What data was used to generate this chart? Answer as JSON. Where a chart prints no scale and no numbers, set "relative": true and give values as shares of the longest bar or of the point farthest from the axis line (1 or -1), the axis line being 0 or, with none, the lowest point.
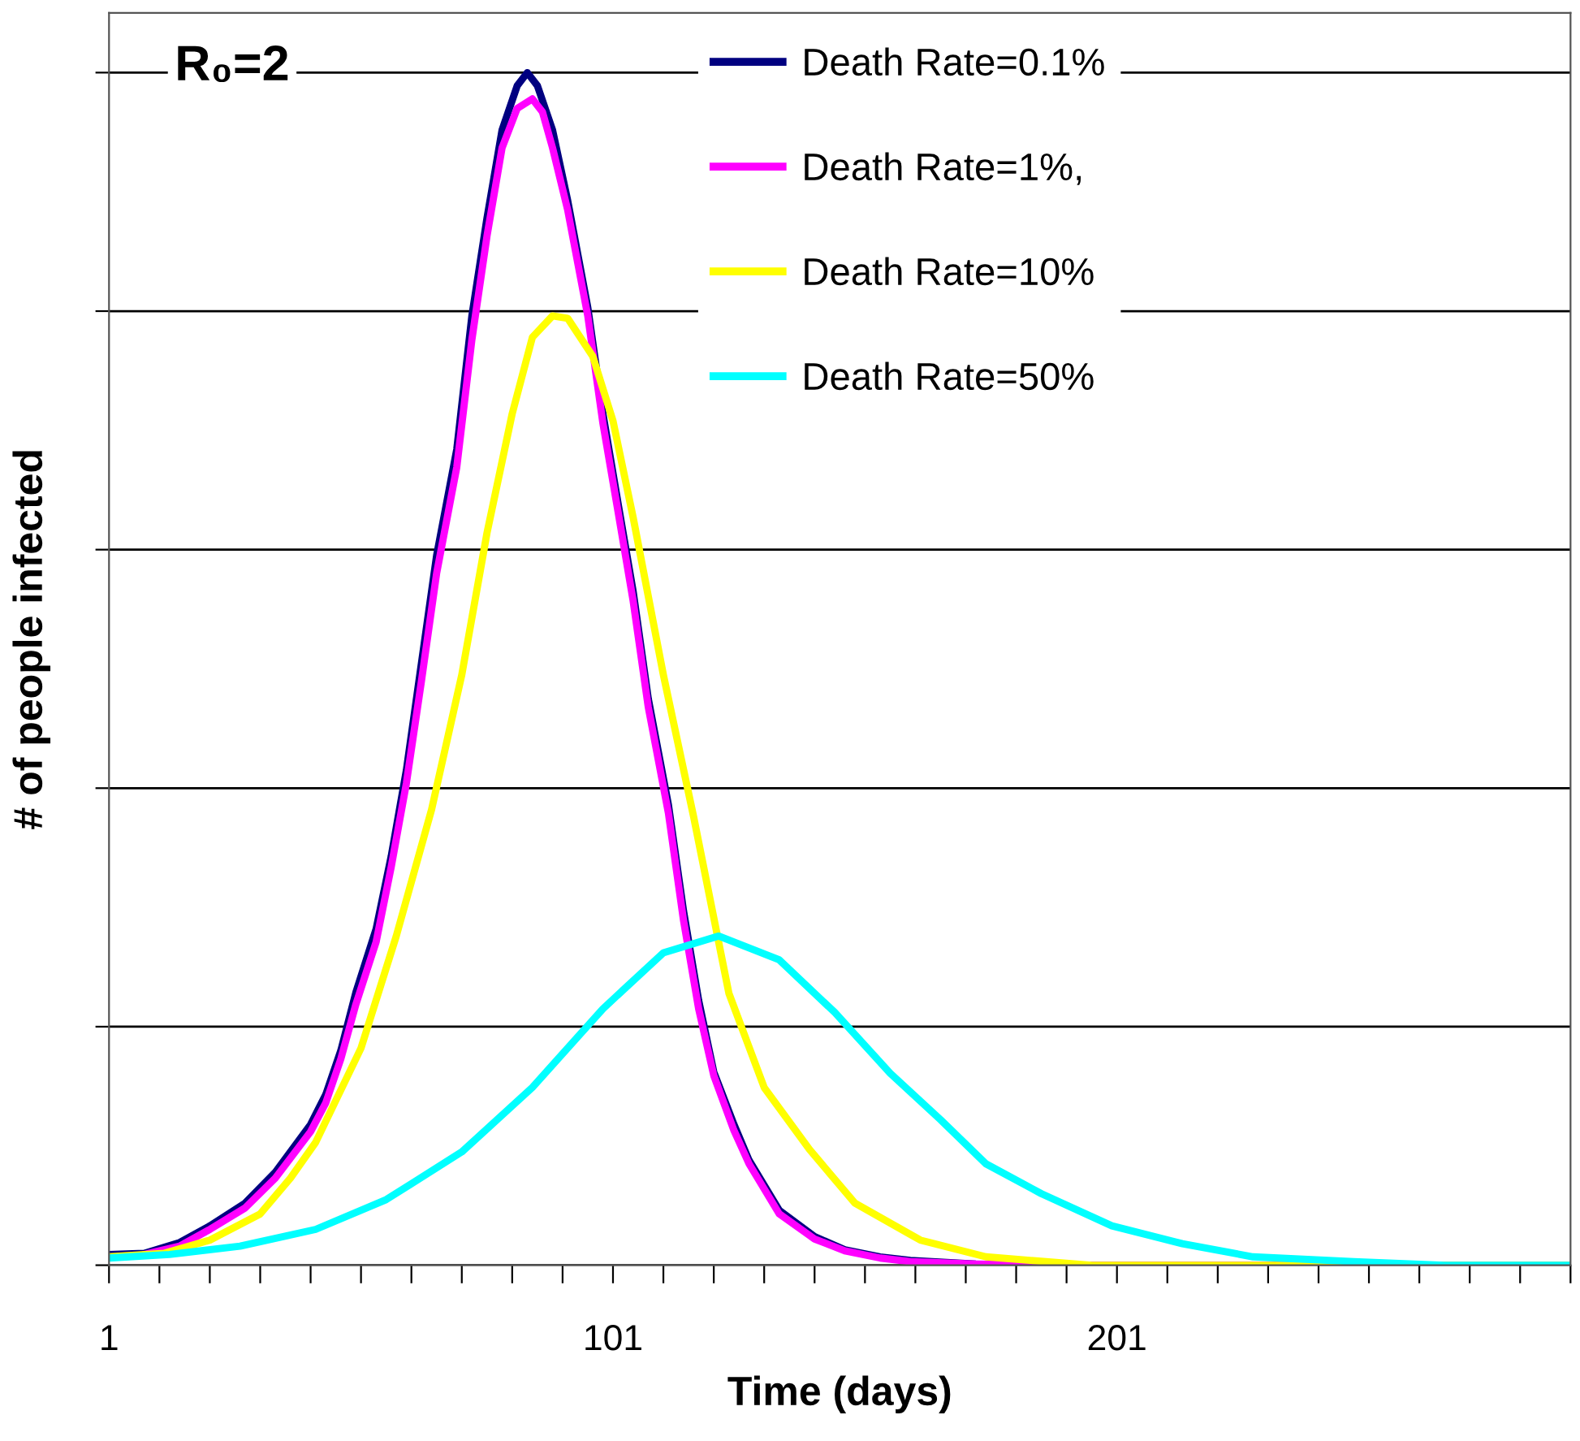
{
  "chart_data": {
    "type": "line",
    "title": "R₀=2",
    "xlabel": "Time (days)",
    "ylabel": "# of people infected",
    "relative": true,
    "grid": "y",
    "legend": "top",
    "marker": "none",
    "line_style": "solid",
    "xlim": [
      1,
      291
    ],
    "xticks": [
      1,
      {
        "value": 11,
        "label": null
      },
      {
        "value": 21,
        "label": null
      },
      {
        "value": 31,
        "label": null
      },
      {
        "value": 41,
        "label": null
      },
      {
        "value": 51,
        "label": null
      },
      {
        "value": 61,
        "label": null
      },
      {
        "value": 71,
        "label": null
      },
      {
        "value": 81,
        "label": null
      },
      {
        "value": 91,
        "label": null
      },
      101,
      {
        "value": 111,
        "label": null
      },
      {
        "value": 121,
        "label": null
      },
      {
        "value": 131,
        "label": null
      },
      {
        "value": 141,
        "label": null
      },
      {
        "value": 151,
        "label": null
      },
      {
        "value": 161,
        "label": null
      },
      {
        "value": 171,
        "label": null
      },
      {
        "value": 181,
        "label": null
      },
      {
        "value": 191,
        "label": null
      },
      201,
      {
        "value": 211,
        "label": null
      },
      {
        "value": 221,
        "label": null
      },
      {
        "value": 231,
        "label": null
      },
      {
        "value": 241,
        "label": null
      },
      {
        "value": 251,
        "label": null
      },
      {
        "value": 261,
        "label": null
      },
      {
        "value": 271,
        "label": null
      },
      {
        "value": 281,
        "label": null
      },
      {
        "value": 291,
        "label": null
      }
    ],
    "series": [
      {
        "name": "Death Rate=0.1%",
        "color": "#000080",
        "x": [
          1,
          8,
          15,
          21,
          28,
          34,
          41,
          44,
          47,
          50,
          54,
          57,
          60,
          63,
          66,
          70,
          73,
          76,
          79,
          82,
          84,
          86,
          89,
          92,
          96,
          99,
          102,
          105,
          108,
          112,
          115,
          118,
          121,
          125,
          128,
          134,
          141,
          147,
          154,
          160,
          173,
          189,
          291
        ],
        "values": [
          0.009,
          0.01,
          0.019,
          0.033,
          0.052,
          0.078,
          0.118,
          0.143,
          0.18,
          0.229,
          0.282,
          0.343,
          0.415,
          0.505,
          0.595,
          0.684,
          0.796,
          0.878,
          0.952,
          0.989,
          1.0,
          0.989,
          0.952,
          0.893,
          0.803,
          0.714,
          0.639,
          0.565,
          0.475,
          0.386,
          0.297,
          0.222,
          0.162,
          0.118,
          0.088,
          0.046,
          0.024,
          0.013,
          0.007,
          0.004,
          0.001,
          0,
          0
        ]
      },
      {
        "name": "Death Rate=1%,",
        "color": "#ff00ff",
        "x": [
          8,
          15,
          21,
          28,
          34,
          41,
          44,
          47,
          50,
          54,
          57,
          60,
          63,
          66,
          70,
          73,
          76,
          79,
          82,
          85,
          87,
          89,
          92,
          96,
          99,
          102,
          105,
          108,
          112,
          115,
          118,
          121,
          125,
          128,
          134,
          141,
          147,
          154,
          160,
          173,
          189,
          291
        ],
        "values": [
          0.009,
          0.016,
          0.03,
          0.048,
          0.073,
          0.112,
          0.136,
          0.173,
          0.219,
          0.271,
          0.334,
          0.404,
          0.49,
          0.58,
          0.669,
          0.776,
          0.863,
          0.937,
          0.97,
          0.978,
          0.967,
          0.937,
          0.885,
          0.796,
          0.706,
          0.632,
          0.557,
          0.468,
          0.379,
          0.289,
          0.215,
          0.159,
          0.113,
          0.085,
          0.043,
          0.022,
          0.012,
          0.006,
          0.003,
          0.001,
          0,
          0
        ]
      },
      {
        "name": "Death Rate=10%",
        "color": "#ffff00",
        "x": [
          1,
          12,
          21,
          31,
          37,
          42,
          51,
          58,
          65,
          71,
          76,
          81,
          85,
          89,
          92,
          97,
          101,
          105,
          111,
          117,
          124,
          131,
          140,
          149,
          162,
          175,
          196,
          291
        ],
        "values": [
          0.007,
          0.01,
          0.021,
          0.043,
          0.073,
          0.103,
          0.182,
          0.276,
          0.382,
          0.495,
          0.614,
          0.714,
          0.778,
          0.796,
          0.794,
          0.762,
          0.708,
          0.627,
          0.495,
          0.376,
          0.228,
          0.149,
          0.097,
          0.052,
          0.021,
          0.007,
          0,
          0
        ]
      },
      {
        "name": "Death Rate=50%",
        "color": "#00ffff",
        "x": [
          1,
          5,
          13,
          27,
          42,
          56,
          71,
          85,
          99,
          111,
          122,
          134,
          145,
          156,
          166,
          175,
          186,
          200,
          214,
          228,
          248,
          266,
          291
        ],
        "values": [
          0.006,
          0.007,
          0.009,
          0.016,
          0.03,
          0.055,
          0.095,
          0.149,
          0.215,
          0.262,
          0.276,
          0.256,
          0.212,
          0.161,
          0.122,
          0.085,
          0.06,
          0.033,
          0.018,
          0.007,
          0.003,
          0,
          0
        ]
      }
    ]
  }
}
